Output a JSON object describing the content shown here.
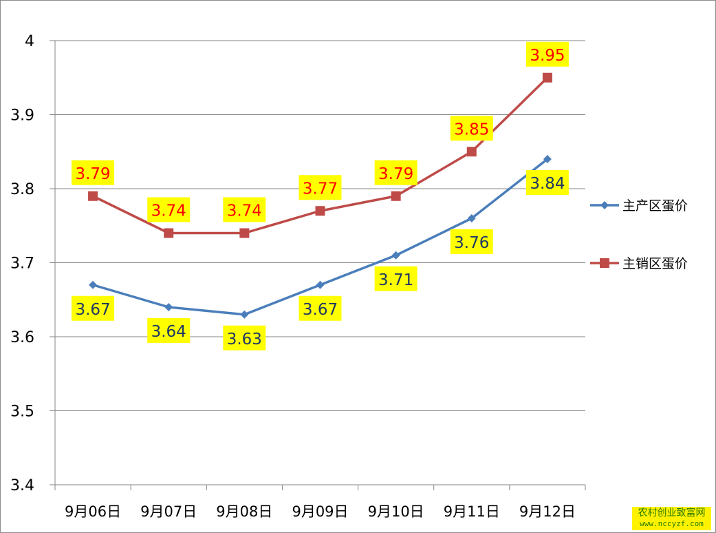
{
  "chart_data": {
    "type": "line",
    "categories": [
      "9月06日",
      "9月07日",
      "9月08日",
      "9月09日",
      "9月10日",
      "9月11日",
      "9月12日"
    ],
    "series": [
      {
        "name": "主产区蛋价",
        "values": [
          3.67,
          3.64,
          3.63,
          3.67,
          3.71,
          3.76,
          3.84
        ],
        "color": "#4a7ebb",
        "marker": "diamond",
        "label_color": "#1f3864",
        "label_position": "below"
      },
      {
        "name": "主销区蛋价",
        "values": [
          3.79,
          3.74,
          3.74,
          3.77,
          3.79,
          3.85,
          3.95
        ],
        "color": "#be4b48",
        "marker": "square",
        "label_color": "#ff0000",
        "label_position": "above"
      }
    ],
    "ylim": [
      3.4,
      4.0
    ],
    "yticks": [
      "3.4",
      "3.5",
      "3.6",
      "3.7",
      "3.8",
      "3.9",
      "4"
    ],
    "grid": true,
    "legend_position": "right",
    "data_label_background": "#ffff00"
  },
  "watermark": {
    "text": "农村创业致富网",
    "url": "www.nccyzf.com"
  }
}
